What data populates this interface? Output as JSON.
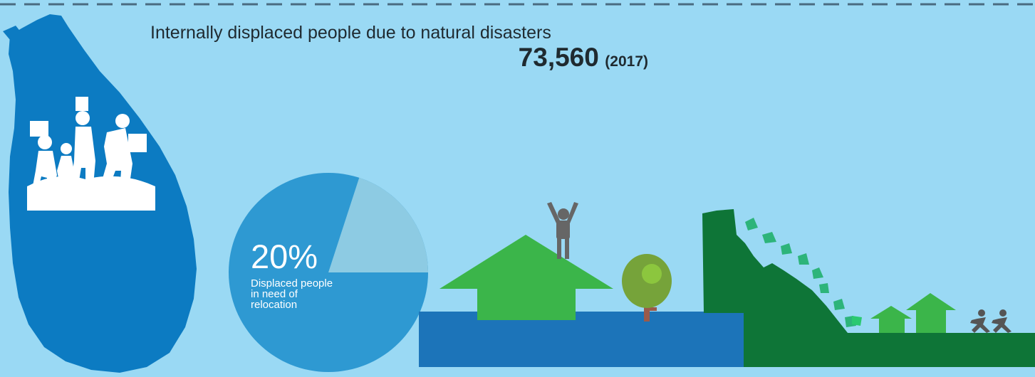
{
  "headline": {
    "title": "Internally displaced people due to natural disasters",
    "value": "73,560",
    "year": "(2017)"
  },
  "chart_data": {
    "type": "pie",
    "values": [
      20,
      80
    ],
    "label_value": "20%",
    "caption": "Displaced people in need of relocation"
  },
  "colors": {
    "background": "#9ad9f4",
    "map": "#0c7bc2",
    "pie_main": "#2e99d2",
    "pie_slice": "#8dcbe3",
    "water": "#1c74b9",
    "house": "#3bb54a",
    "cliff": "#0e7537",
    "person": "#666666",
    "tree_canopy": "#76a33a",
    "tree_trunk": "#9b5a4a"
  },
  "icons": [
    "sri-lanka-map",
    "displaced-family-icon",
    "flood-scene-icon",
    "landslide-scene-icon",
    "running-people-icon"
  ]
}
